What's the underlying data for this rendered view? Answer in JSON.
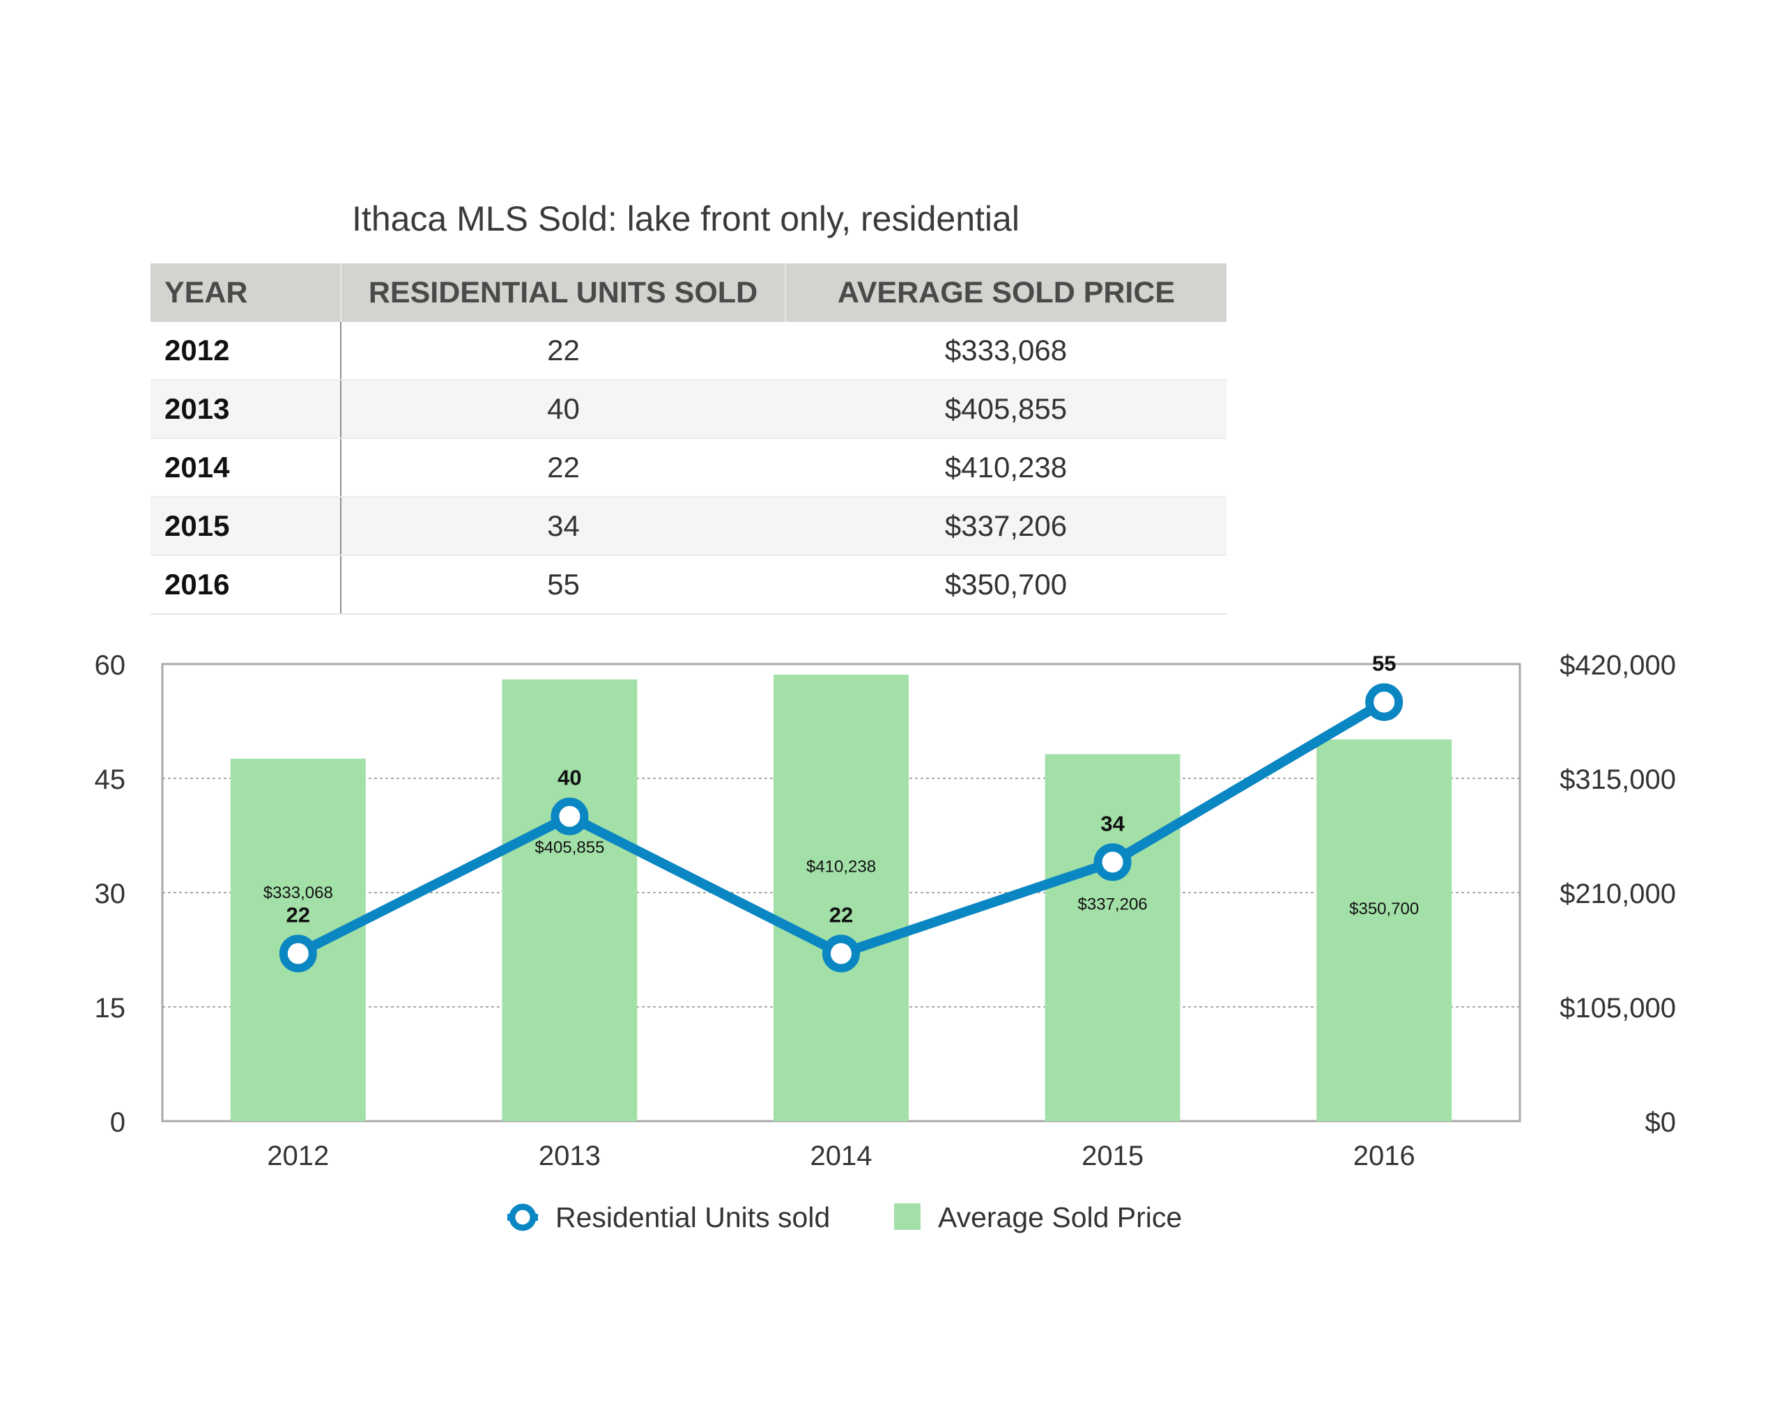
{
  "page_title": "Ithaca MLS Sold: lake front only, residential",
  "table": {
    "headers": [
      "YEAR",
      "RESIDENTIAL UNITS SOLD",
      "AVERAGE SOLD PRICE"
    ],
    "rows": [
      [
        "2012",
        "22",
        "$333,068"
      ],
      [
        "2013",
        "40",
        "$405,855"
      ],
      [
        "2014",
        "22",
        "$410,238"
      ],
      [
        "2015",
        "34",
        "$337,206"
      ],
      [
        "2016",
        "55",
        "$350,700"
      ]
    ]
  },
  "chart_data": {
    "type": "bar",
    "categories": [
      "2012",
      "2013",
      "2014",
      "2015",
      "2016"
    ],
    "series": [
      {
        "name": "Average Sold Price",
        "type": "bar",
        "axis": "right",
        "color": "#a3e0a8",
        "values": [
          333068,
          405855,
          410238,
          337206,
          350700
        ],
        "value_labels": [
          "$333,068",
          "$405,855",
          "$410,238",
          "$337,206",
          "$350,700"
        ]
      },
      {
        "name": "Residential Units sold",
        "type": "line",
        "axis": "left",
        "color": "#0a86c2",
        "values": [
          22,
          40,
          22,
          34,
          55
        ],
        "value_labels": [
          "22",
          "40",
          "22",
          "34",
          "55"
        ]
      }
    ],
    "y_left": {
      "ylim": [
        0,
        60
      ],
      "ticks": [
        0,
        15,
        30,
        45,
        60
      ],
      "tick_labels": [
        "0",
        "15",
        "30",
        "45",
        "60"
      ]
    },
    "y_right": {
      "ylim": [
        0,
        420000
      ],
      "ticks": [
        0,
        105000,
        210000,
        315000,
        420000
      ],
      "tick_labels": [
        "$0",
        "$105,000",
        "$210,000",
        "$315,000",
        "$420,000"
      ]
    },
    "grid": "horizontal dotted",
    "legend_position": "bottom-center",
    "xlabel": "",
    "ylabel": ""
  }
}
